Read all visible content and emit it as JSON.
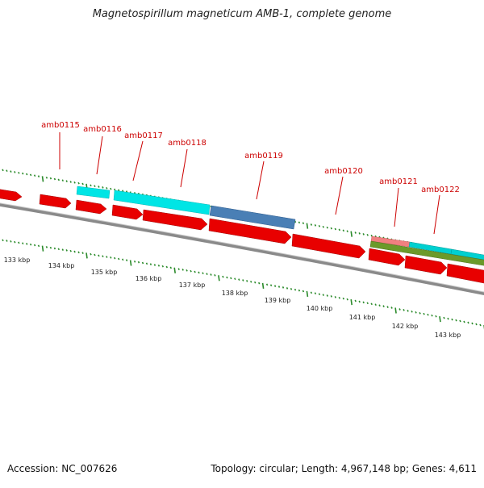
{
  "title": "Magnetospirillum magneticum AMB-1, complete genome",
  "footer": {
    "accession": "Accession: NC_007626",
    "summary": "Topology: circular; Length: 4,967,148 bp; Genes: 4,611"
  },
  "colors": {
    "gene_forward": "#e80000",
    "gene_cyan": "#00e5e5",
    "gene_steelblue": "#4a7fb5",
    "gene_salmon": "#f08080",
    "gene_olive": "#6b9a2a",
    "backbone": "#808080",
    "ticks": "#2a8a2a",
    "gene_label": "#cc0000"
  },
  "scale_labels": [
    "133 kbp",
    "134 kbp",
    "135 kbp",
    "136 kbp",
    "137 kbp",
    "138 kbp",
    "139 kbp",
    "140 kbp",
    "141 kbp",
    "142 kbp",
    "143 kbp"
  ],
  "gene_labels": [
    "amb0115",
    "amb0116",
    "amb0117",
    "amb0118",
    "amb0119",
    "amb0120",
    "amb0121",
    "amb0122"
  ]
}
